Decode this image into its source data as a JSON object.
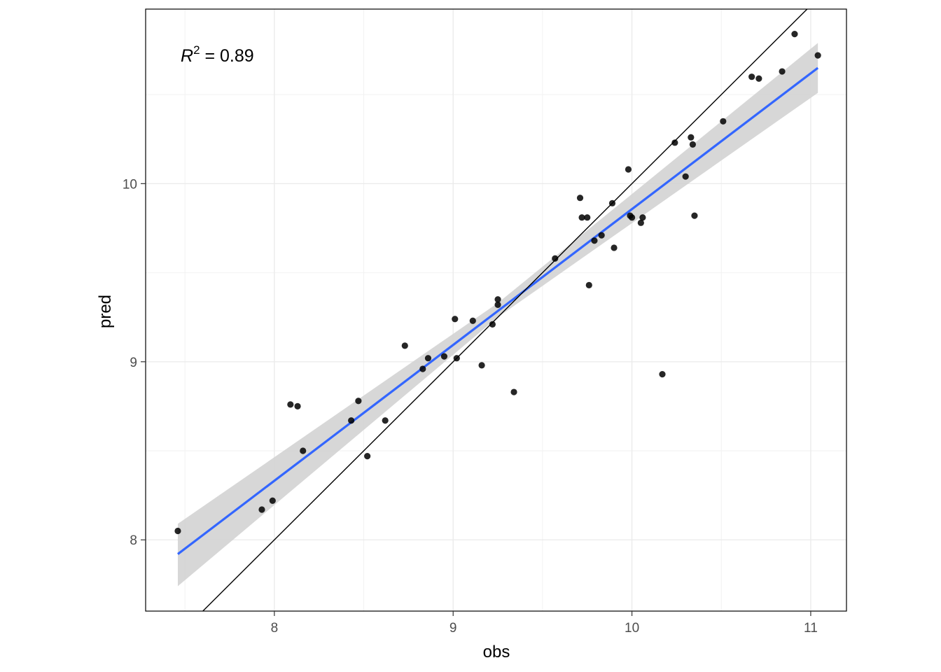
{
  "chart_data": {
    "type": "scatter",
    "xlabel": "obs",
    "ylabel": "pred",
    "xlim": [
      7.28,
      11.2
    ],
    "ylim": [
      7.6,
      10.98
    ],
    "x_ticks": [
      8,
      9,
      10,
      11
    ],
    "y_ticks": [
      8,
      9,
      10
    ],
    "x_tick_labels": [
      "8",
      "9",
      "10",
      "11"
    ],
    "y_tick_labels": [
      "8",
      "9",
      "10"
    ],
    "grid": true,
    "annotation": {
      "symbol": "R",
      "superscript": "2",
      "text": " = 0.89"
    },
    "points": [
      {
        "x": 7.46,
        "y": 8.05
      },
      {
        "x": 7.93,
        "y": 8.17
      },
      {
        "x": 7.99,
        "y": 8.22
      },
      {
        "x": 8.09,
        "y": 8.76
      },
      {
        "x": 8.13,
        "y": 8.75
      },
      {
        "x": 8.16,
        "y": 8.5
      },
      {
        "x": 8.43,
        "y": 8.67
      },
      {
        "x": 8.47,
        "y": 8.78
      },
      {
        "x": 8.52,
        "y": 8.47
      },
      {
        "x": 8.62,
        "y": 8.67
      },
      {
        "x": 8.73,
        "y": 9.09
      },
      {
        "x": 8.83,
        "y": 8.96
      },
      {
        "x": 8.86,
        "y": 9.02
      },
      {
        "x": 8.95,
        "y": 9.03
      },
      {
        "x": 9.01,
        "y": 9.24
      },
      {
        "x": 9.02,
        "y": 9.02
      },
      {
        "x": 9.11,
        "y": 9.23
      },
      {
        "x": 9.16,
        "y": 8.98
      },
      {
        "x": 9.22,
        "y": 9.21
      },
      {
        "x": 9.25,
        "y": 9.35
      },
      {
        "x": 9.25,
        "y": 9.32
      },
      {
        "x": 9.34,
        "y": 8.83
      },
      {
        "x": 9.57,
        "y": 9.58
      },
      {
        "x": 9.71,
        "y": 9.92
      },
      {
        "x": 9.72,
        "y": 9.81
      },
      {
        "x": 9.75,
        "y": 9.81
      },
      {
        "x": 9.76,
        "y": 9.43
      },
      {
        "x": 9.79,
        "y": 9.68
      },
      {
        "x": 9.83,
        "y": 9.71
      },
      {
        "x": 9.89,
        "y": 9.89
      },
      {
        "x": 9.9,
        "y": 9.64
      },
      {
        "x": 9.98,
        "y": 10.08
      },
      {
        "x": 9.99,
        "y": 9.82
      },
      {
        "x": 10.0,
        "y": 9.81
      },
      {
        "x": 10.05,
        "y": 9.78
      },
      {
        "x": 10.06,
        "y": 9.81
      },
      {
        "x": 10.17,
        "y": 8.93
      },
      {
        "x": 10.24,
        "y": 10.23
      },
      {
        "x": 10.3,
        "y": 10.04
      },
      {
        "x": 10.33,
        "y": 10.26
      },
      {
        "x": 10.34,
        "y": 10.22
      },
      {
        "x": 10.35,
        "y": 9.82
      },
      {
        "x": 10.51,
        "y": 10.35
      },
      {
        "x": 10.67,
        "y": 10.6
      },
      {
        "x": 10.71,
        "y": 10.59
      },
      {
        "x": 10.84,
        "y": 10.63
      },
      {
        "x": 10.91,
        "y": 10.84
      },
      {
        "x": 11.04,
        "y": 10.72
      }
    ],
    "series": [
      {
        "kind": "identity-line",
        "x": [
          7.28,
          11.2
        ],
        "y": [
          7.28,
          11.2
        ],
        "color": "#000000"
      },
      {
        "kind": "lm-fit",
        "x": [
          7.46,
          11.04
        ],
        "y": [
          7.92,
          10.65
        ],
        "color": "#3366FF"
      },
      {
        "kind": "confidence-band",
        "x": [
          7.46,
          9.25,
          11.04
        ],
        "upper": [
          8.09,
          9.33,
          10.79
        ],
        "lower": [
          7.74,
          9.25,
          10.51
        ],
        "color": "#d3d3d3"
      }
    ],
    "colors": {
      "points": "#000000",
      "fit": "#3366FF",
      "band": "#d3d3d3",
      "grid_major": "#ebebeb",
      "grid_minor": "#f2f2f2",
      "panel_border": "#000000"
    }
  }
}
